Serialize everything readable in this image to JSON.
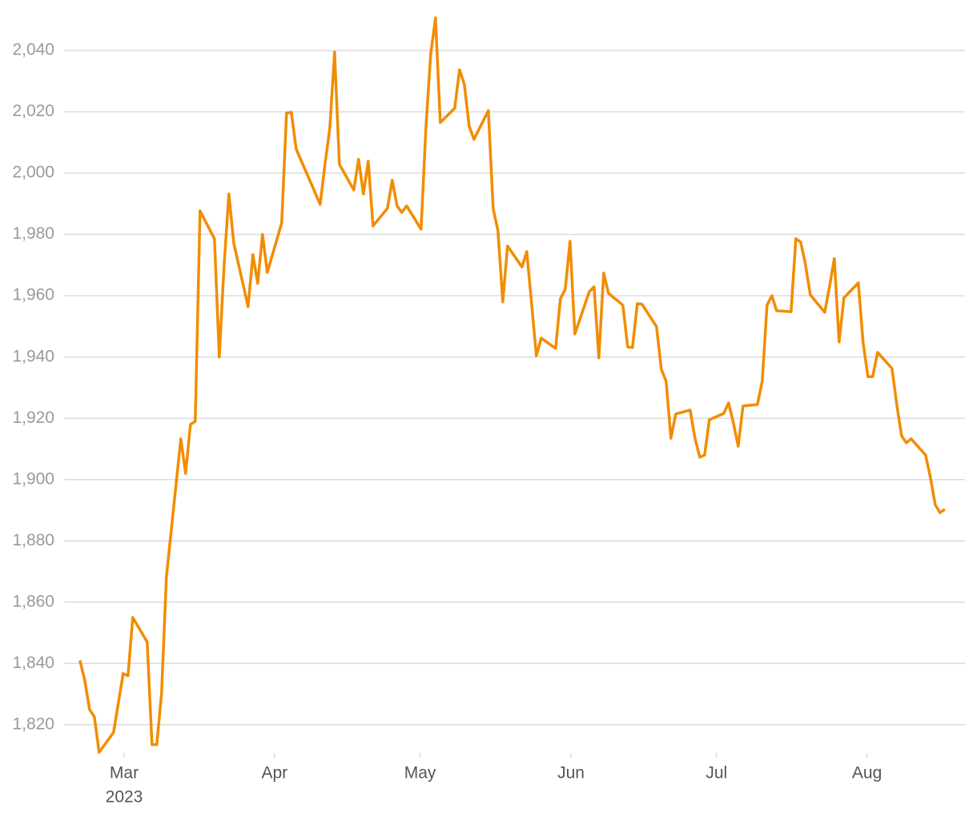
{
  "chart_data": {
    "type": "line",
    "x": [
      0,
      1,
      2,
      3,
      4,
      7,
      9,
      10,
      11,
      14,
      15,
      16,
      17,
      18,
      21,
      22,
      23,
      24,
      25,
      28,
      29,
      30,
      31,
      32,
      35,
      36,
      37,
      38,
      39,
      42,
      43,
      44,
      45,
      50,
      51,
      52,
      53,
      54,
      57,
      58,
      59,
      60,
      61,
      64,
      65,
      66,
      67,
      68,
      71,
      72,
      73,
      74,
      75,
      78,
      79,
      80,
      81,
      82,
      85,
      86,
      87,
      88,
      89,
      92,
      93,
      95,
      96,
      99,
      100,
      101,
      102,
      103,
      106,
      107,
      108,
      109,
      110,
      113,
      114,
      115,
      116,
      117,
      120,
      121,
      122,
      123,
      124,
      127,
      128,
      129,
      130,
      131,
      134,
      135,
      136,
      137,
      138,
      141,
      142,
      143,
      144,
      145,
      148,
      149,
      150,
      151,
      152,
      155,
      156,
      157,
      158,
      159,
      162,
      163,
      164,
      165,
      166,
      169,
      170,
      171,
      172,
      173,
      176,
      177,
      178,
      179,
      180
    ],
    "series": [
      {
        "color": "#f28c00",
        "values": [
          1841,
          1834.5,
          1825,
          1822.6,
          1811,
          1817.5,
          1836.7,
          1836,
          1855,
          1847,
          1813.5,
          1813.5,
          1830.5,
          1868.3,
          1913.3,
          1902,
          1918,
          1919,
          1987.7,
          1978.6,
          1940,
          1969.7,
          1993.2,
          1977.3,
          1956.4,
          1973.4,
          1964,
          1980,
          1967.6,
          1983.8,
          2019.6,
          2019.9,
          2007.9,
          1989.8,
          2002.9,
          2014.6,
          2039.5,
          2002.9,
          1994.5,
          2004.5,
          1993.2,
          2003.9,
          1982.8,
          1988.5,
          1997.7,
          1989.3,
          1987.2,
          1989.3,
          1981.7,
          2014.6,
          2038.7,
          2050.7,
          2016.5,
          2021.2,
          2033.7,
          2029,
          2015.4,
          2011,
          2020.4,
          1988.5,
          1981.2,
          1958,
          1976.2,
          1969.4,
          1974.4,
          1940.4,
          1946.2,
          1942.8,
          1959,
          1962.1,
          1977.8,
          1947.5,
          1961.3,
          1962.9,
          1939.7,
          1967.4,
          1960.8,
          1956.9,
          1943.3,
          1943.1,
          1957.4,
          1957.2,
          1949.9,
          1936,
          1932.1,
          1913.5,
          1921.4,
          1922.7,
          1913.5,
          1907.3,
          1908,
          1919.5,
          1921.6,
          1925,
          1918.5,
          1910.9,
          1924,
          1924.5,
          1932.1,
          1956.9,
          1960,
          1955.1,
          1954.8,
          1978.6,
          1977.5,
          1970.2,
          1960.3,
          1954.6,
          1962.9,
          1972.1,
          1944.9,
          1959.3,
          1964.2,
          1944.6,
          1933.6,
          1933.6,
          1941.5,
          1936.3,
          1924.5,
          1914.3,
          1912,
          1913.3,
          1908,
          1900.7,
          1891.8,
          1889.2,
          1890.3
        ]
      }
    ],
    "xlim": [
      -3.3,
      184.2
    ],
    "xticks": [
      {
        "value": 9.2,
        "label": "Mar"
      },
      {
        "value": 40.5,
        "label": "Apr"
      },
      {
        "value": 70.8,
        "label": "May"
      },
      {
        "value": 102.2,
        "label": "Jun"
      },
      {
        "value": 132.5,
        "label": "Jul"
      },
      {
        "value": 163.8,
        "label": "Aug"
      }
    ],
    "year_label": "2023",
    "ylim": [
      1810.8,
      2056.5
    ],
    "yticks": [
      {
        "value": 1820,
        "label": "1,820"
      },
      {
        "value": 1840,
        "label": "1,840"
      },
      {
        "value": 1860,
        "label": "1,860"
      },
      {
        "value": 1880,
        "label": "1,880"
      },
      {
        "value": 1900,
        "label": "1,900"
      },
      {
        "value": 1920,
        "label": "1,920"
      },
      {
        "value": 1940,
        "label": "1,940"
      },
      {
        "value": 1960,
        "label": "1,960"
      },
      {
        "value": 1980,
        "label": "1,980"
      },
      {
        "value": 2000,
        "label": "2,000"
      },
      {
        "value": 2020,
        "label": "2,020"
      },
      {
        "value": 2040,
        "label": "2,040"
      }
    ],
    "grid": true
  }
}
